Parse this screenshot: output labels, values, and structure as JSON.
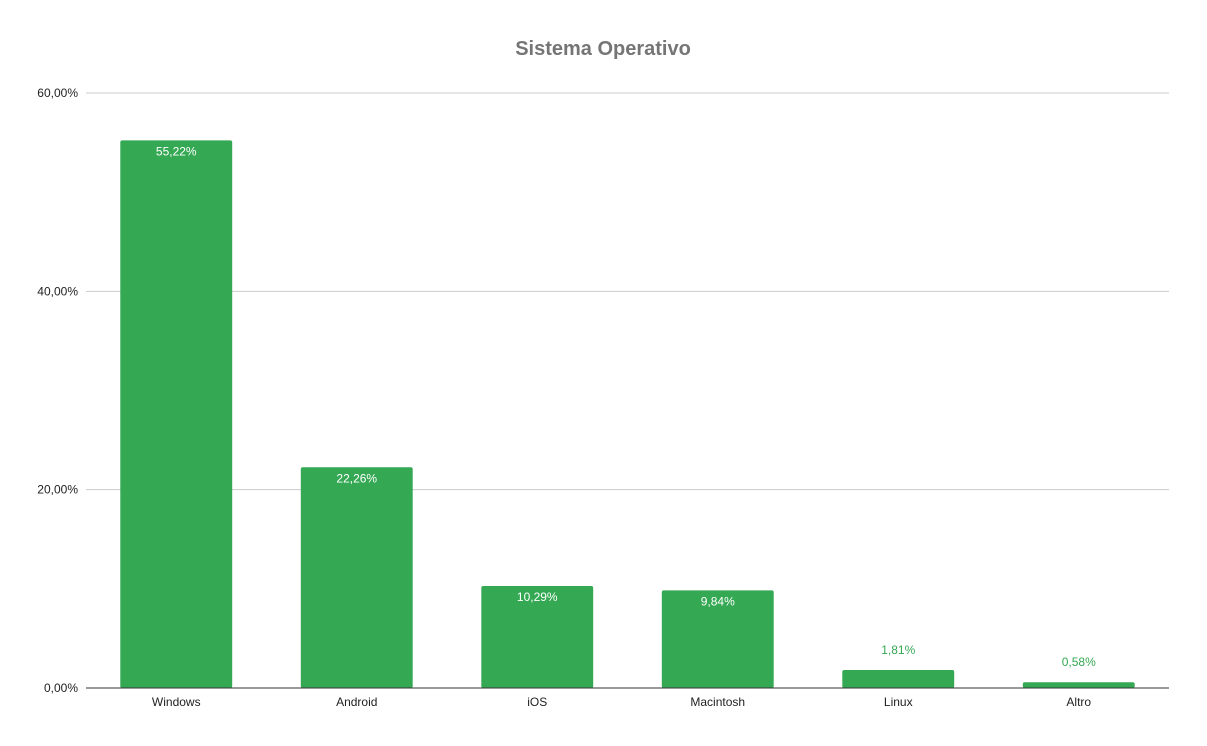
{
  "chart_data": {
    "type": "bar",
    "title": "Sistema Operativo",
    "xlabel": "",
    "ylabel": "",
    "categories": [
      "Windows",
      "Android",
      "iOS",
      "Macintosh",
      "Linux",
      "Altro"
    ],
    "values": [
      55.22,
      22.26,
      10.29,
      9.84,
      1.81,
      0.58
    ],
    "value_labels": [
      "55,22%",
      "22,26%",
      "10,29%",
      "9,84%",
      "1,81%",
      "0,58%"
    ],
    "ylim": [
      0,
      60
    ],
    "yticks": [
      0,
      20,
      40,
      60
    ],
    "ytick_labels": [
      "0,00%",
      "20,00%",
      "40,00%",
      "60,00%"
    ],
    "grid": true,
    "legend": "none",
    "colors": {
      "bar": "#34a853",
      "grid": "#cccccc",
      "axis": "#333333",
      "label_inside": "#ffffff"
    }
  }
}
